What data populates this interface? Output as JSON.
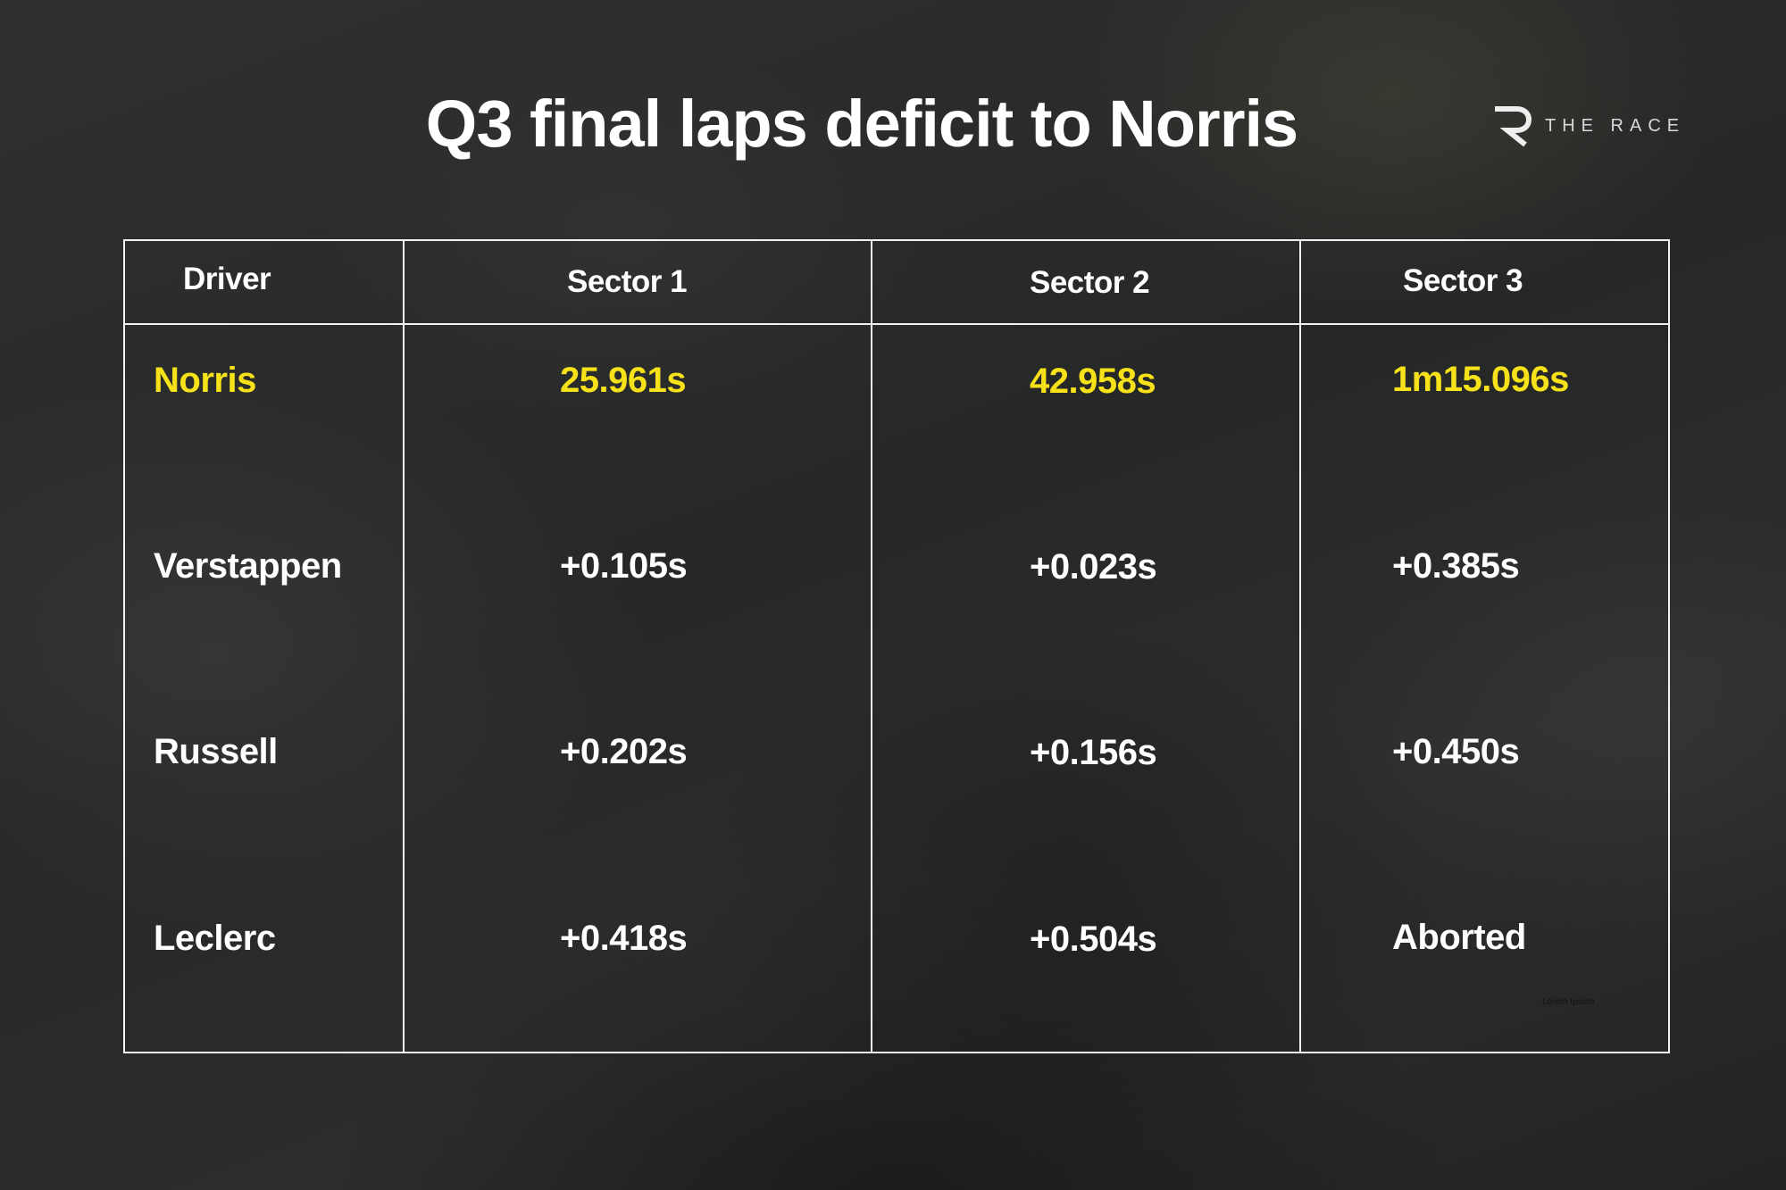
{
  "title": "Q3 final laps deficit to Norris",
  "logo": {
    "text": "THE RACE",
    "icon": "the-race-r-logo-icon"
  },
  "colors": {
    "highlight": "#f7e21a",
    "text": "#ffffff",
    "grid": "#f2f2f2",
    "background": "#2a2b2b"
  },
  "chart_data": {
    "type": "table",
    "columns": [
      "Driver",
      "Sector 1",
      "Sector 2",
      "Sector 3"
    ],
    "rows": [
      {
        "driver": "Norris",
        "sector1": "25.961s",
        "sector2": "42.958s",
        "sector3": "1m15.096s",
        "highlight": true
      },
      {
        "driver": "Verstappen",
        "sector1": "+0.105s",
        "sector2": "+0.023s",
        "sector3": "+0.385s",
        "highlight": false
      },
      {
        "driver": "Russell",
        "sector1": "+0.202s",
        "sector2": "+0.156s",
        "sector3": "+0.450s",
        "highlight": false
      },
      {
        "driver": "Leclerc",
        "sector1": "+0.418s",
        "sector2": "+0.504s",
        "sector3": "Aborted",
        "highlight": false
      }
    ]
  },
  "watermark": "Lorem Ipsum"
}
